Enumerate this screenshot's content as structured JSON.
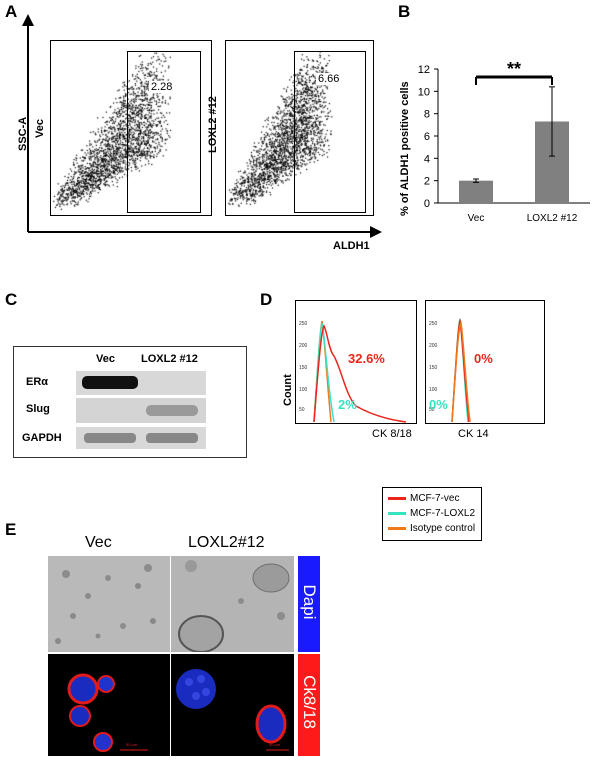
{
  "panel_labels": {
    "a": "A",
    "b": "B",
    "c": "C",
    "d": "D",
    "e": "E"
  },
  "panel_a": {
    "y_axis_label": "SSC-A",
    "x_axis_label": "ALDH1",
    "plots": [
      {
        "label": "Vec",
        "gate_value": "2.28"
      },
      {
        "label": "LOXL2 #12",
        "gate_value": "6.66"
      }
    ]
  },
  "chart_data": {
    "type": "bar",
    "title": "",
    "ylabel": "% of ALDH1 positive cells",
    "xlabel": "",
    "categories": [
      "Vec",
      "LOXL2 #12"
    ],
    "values": [
      2.0,
      7.3
    ],
    "errors": [
      0.15,
      3.1
    ],
    "ylim": [
      0,
      12
    ],
    "yticks": [
      "0",
      "2",
      "4",
      "6",
      "8",
      "10",
      "12"
    ],
    "significance": "**",
    "bar_color": "#808080"
  },
  "panel_c": {
    "columns": [
      "Vec",
      "LOXL2 #12"
    ],
    "rows": [
      "ERα",
      "Slug",
      "GAPDH"
    ]
  },
  "panel_d": {
    "y_axis_label": "Count",
    "plots": [
      {
        "x_label": "CK 8/18",
        "red_pct": "32.6%",
        "green_pct": "2%"
      },
      {
        "x_label": "CK 14",
        "red_pct": "0%",
        "green_pct": "0%"
      }
    ],
    "legend": [
      {
        "label": "MCF-7-vec",
        "color": "#e8261c"
      },
      {
        "label": "MCF-7-LOXL2",
        "color": "#35e3c0"
      },
      {
        "label": "Isotype control",
        "color": "#f07a1a"
      }
    ],
    "pct_colors": {
      "red": "#e8261c",
      "green": "#35e3c0"
    }
  },
  "panel_e": {
    "columns": [
      "Vec",
      "LOXL2#12"
    ],
    "side_labels": [
      {
        "text": "Dapi",
        "color": "#1a1aff"
      },
      {
        "text": "Ck8/18",
        "color": "#ff1a1a"
      }
    ],
    "scale_bar_text": "50 μm"
  }
}
